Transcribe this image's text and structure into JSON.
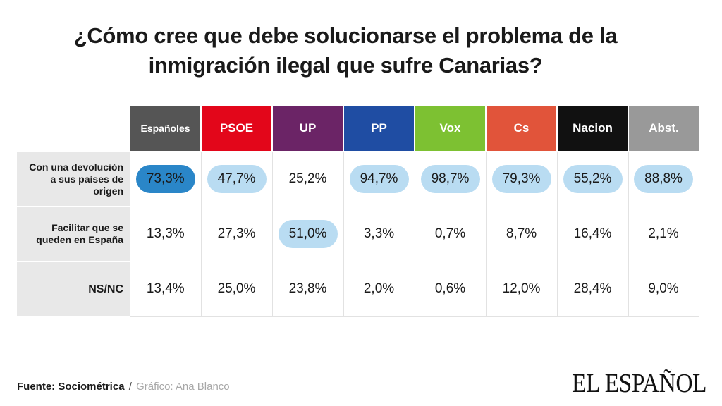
{
  "title": {
    "line1": "¿Cómo cree que debe solucionarse el problema de la",
    "line2": "inmigración ilegal que sufre Canarias?"
  },
  "colors": {
    "highlight": "#b9dcf2",
    "highlight_strong": "#2a86c8",
    "row_label_bg": "#e8e8e8"
  },
  "chart_data": {
    "type": "table",
    "columns": [
      {
        "label": "Españoles",
        "color": "#555555"
      },
      {
        "label": "PSOE",
        "color": "#e3061a"
      },
      {
        "label": "UP",
        "color": "#6b2466"
      },
      {
        "label": "PP",
        "color": "#1f4da3"
      },
      {
        "label": "Vox",
        "color": "#7dc132"
      },
      {
        "label": "Cs",
        "color": "#e1543a"
      },
      {
        "label": "Nacion",
        "color": "#111111"
      },
      {
        "label": "Abst.",
        "color": "#999999"
      }
    ],
    "rows": [
      {
        "label": "Con una devolución a sus países de origen",
        "values": [
          "73,3%",
          "47,7%",
          "25,2%",
          "94,7%",
          "98,7%",
          "79,3%",
          "55,2%",
          "88,8%"
        ],
        "highlight": [
          "strong",
          "light",
          "",
          "light",
          "light",
          "light",
          "light",
          "light"
        ]
      },
      {
        "label": "Facilitar que se queden en España",
        "values": [
          "13,3%",
          "27,3%",
          "51,0%",
          "3,3%",
          "0,7%",
          "8,7%",
          "16,4%",
          "2,1%"
        ],
        "highlight": [
          "",
          "",
          "light",
          "",
          "",
          "",
          "",
          ""
        ]
      },
      {
        "label": "NS/NC",
        "values": [
          "13,4%",
          "25,0%",
          "23,8%",
          "2,0%",
          "0,6%",
          "12,0%",
          "28,4%",
          "9,0%"
        ],
        "highlight": [
          "",
          "",
          "",
          "",
          "",
          "",
          "",
          ""
        ]
      }
    ]
  },
  "footer": {
    "source_label": "Fuente: Sociométrica",
    "separator": "/",
    "credit": "Gráfico: Ana Blanco"
  },
  "logo_text": "EL ESPAÑOL"
}
